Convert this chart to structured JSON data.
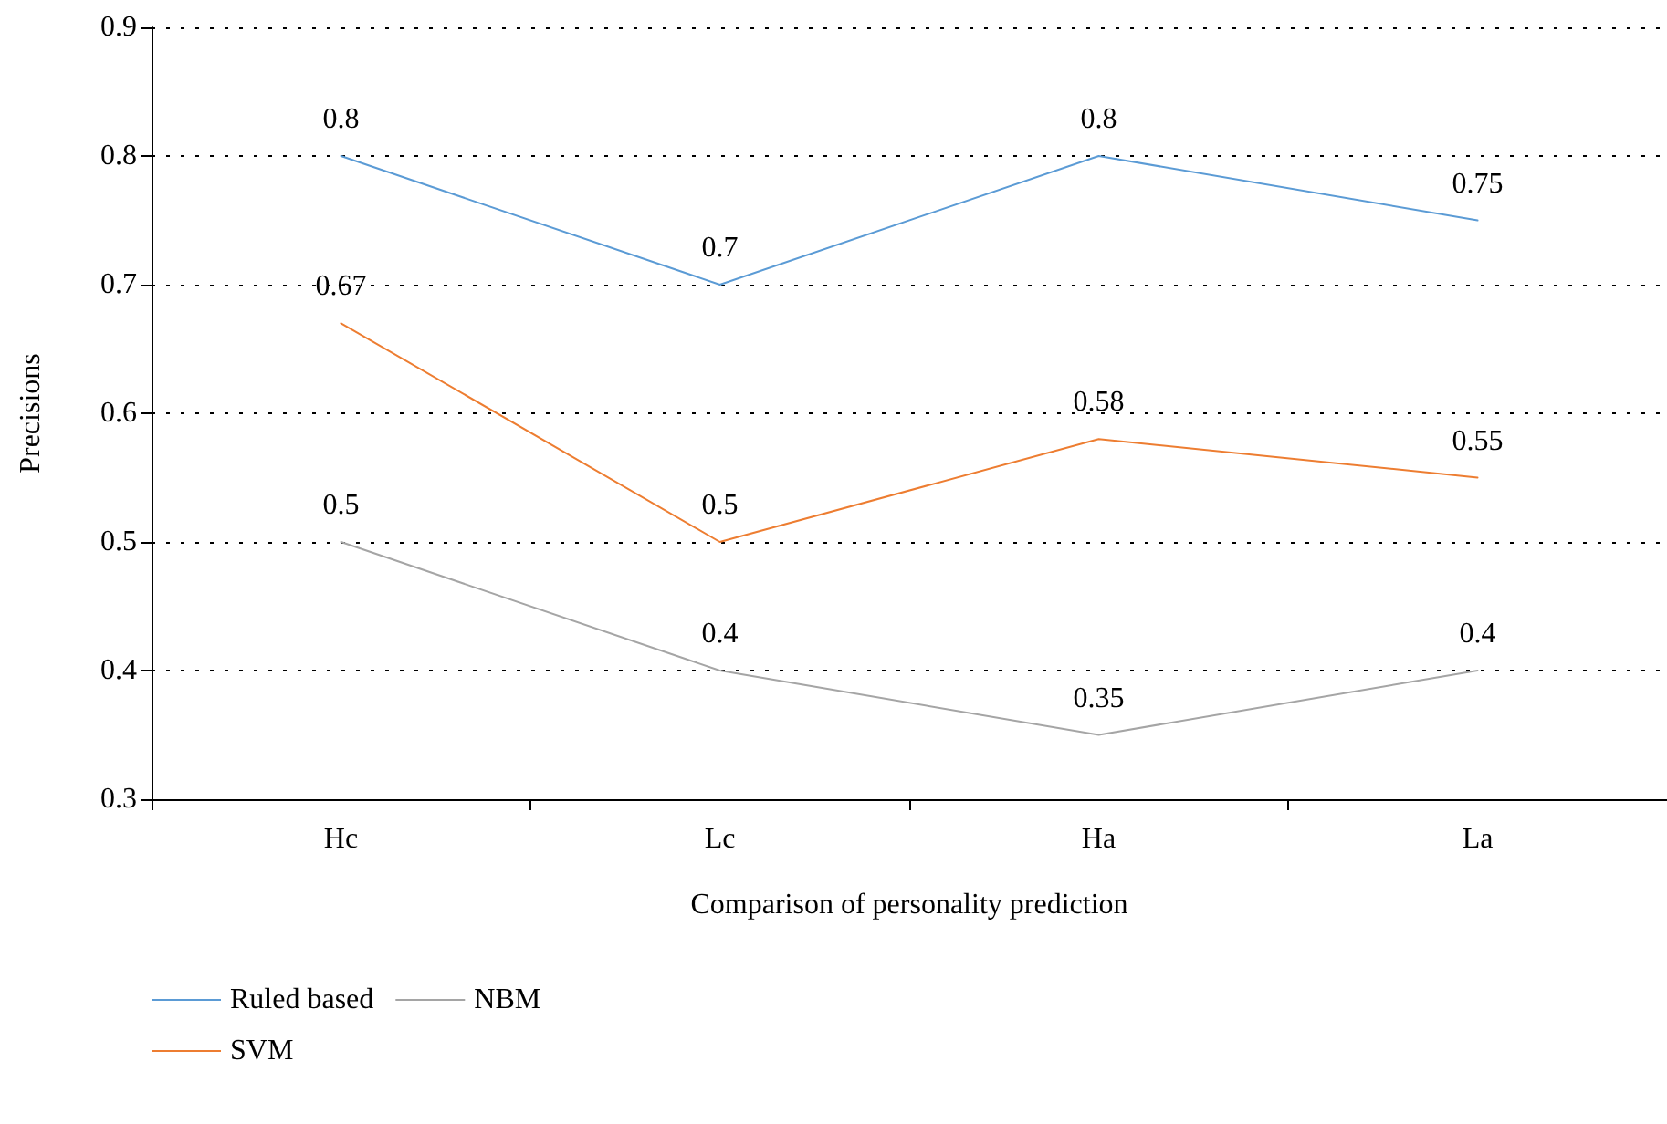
{
  "chart_data": {
    "type": "line",
    "xlabel": "Comparison of personality prediction",
    "ylabel": "Precisions",
    "categories": [
      "Hc",
      "Lc",
      "Ha",
      "La"
    ],
    "series": [
      {
        "name": "Ruled based",
        "color": "#5b9bd5",
        "values": [
          0.8,
          0.7,
          0.8,
          0.75
        ]
      },
      {
        "name": "SVM",
        "color": "#ed7d31",
        "values": [
          0.67,
          0.5,
          0.58,
          0.55
        ]
      },
      {
        "name": "NBM",
        "color": "#a5a5a5",
        "values": [
          0.5,
          0.4,
          0.35,
          0.4
        ]
      }
    ],
    "ylim": [
      0.3,
      0.9
    ],
    "yticks": [
      0.3,
      0.4,
      0.5,
      0.6,
      0.7,
      0.8,
      0.9
    ],
    "grid": "y",
    "legend": "bottom left",
    "data_labels": true,
    "line_style": "solid"
  }
}
